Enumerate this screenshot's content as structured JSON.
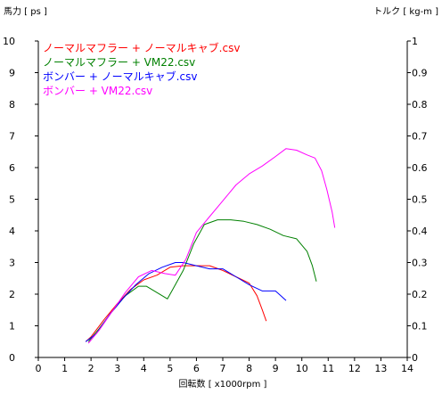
{
  "chart_data": {
    "type": "line",
    "xlabel": "回転数 [ x1000rpm ]",
    "ylabel_left": "馬力 [ ps ]",
    "ylabel_right": "トルク [ kg-m ]",
    "xlim": [
      0,
      14
    ],
    "ylim_left": [
      0,
      10
    ],
    "ylim_right": [
      0,
      1
    ],
    "x_ticks": [
      "0",
      "1",
      "2",
      "3",
      "4",
      "5",
      "6",
      "7",
      "8",
      "9",
      "10",
      "11",
      "12",
      "13",
      "14"
    ],
    "y_ticks_left": [
      "0",
      "1",
      "2",
      "3",
      "4",
      "5",
      "6",
      "7",
      "8",
      "9",
      "10"
    ],
    "y_ticks_right": [
      "0",
      "0.1",
      "0.2",
      "0.3",
      "0.4",
      "0.5",
      "0.6",
      "0.7",
      "0.8",
      "0.9",
      "1"
    ],
    "legend_placement": "top-left",
    "series": [
      {
        "name": "ノーマルマフラー + ノーマルキャブ.csv",
        "color": "#ff0000",
        "x": [
          1.8,
          2.0,
          2.5,
          3.0,
          3.5,
          4.0,
          4.5,
          5.0,
          5.5,
          6.0,
          6.5,
          7.0,
          7.5,
          8.0,
          8.3,
          8.5,
          8.65
        ],
        "y": [
          0.5,
          0.65,
          1.2,
          1.7,
          2.15,
          2.45,
          2.6,
          2.85,
          2.9,
          2.9,
          2.9,
          2.75,
          2.55,
          2.35,
          1.95,
          1.5,
          1.15
        ]
      },
      {
        "name": "ノーマルマフラー + VM22.csv",
        "color": "#008000",
        "x": [
          1.9,
          2.3,
          2.8,
          3.3,
          3.8,
          4.1,
          4.5,
          4.9,
          5.1,
          5.5,
          5.9,
          6.3,
          6.8,
          7.3,
          7.8,
          8.3,
          8.8,
          9.3,
          9.8,
          10.2,
          10.4,
          10.55
        ],
        "y": [
          0.5,
          0.9,
          1.45,
          1.95,
          2.25,
          2.25,
          2.05,
          1.85,
          2.15,
          2.75,
          3.6,
          4.2,
          4.35,
          4.35,
          4.3,
          4.2,
          4.05,
          3.85,
          3.75,
          3.35,
          2.9,
          2.4
        ]
      },
      {
        "name": "ボンバー + ノーマルキャブ.csv",
        "color": "#0000ff",
        "x": [
          1.8,
          2.2,
          2.7,
          3.2,
          3.7,
          4.2,
          4.7,
          5.2,
          5.5,
          6.0,
          6.5,
          7.0,
          7.5,
          8.0,
          8.5,
          9.0,
          9.2,
          9.4
        ],
        "y": [
          0.5,
          0.75,
          1.35,
          1.85,
          2.3,
          2.65,
          2.85,
          3.0,
          3.0,
          2.9,
          2.8,
          2.8,
          2.55,
          2.3,
          2.1,
          2.1,
          1.95,
          1.8
        ]
      },
      {
        "name": "ボンバー + VM22.csv",
        "color": "#ff00ff",
        "x": [
          1.9,
          2.3,
          2.8,
          3.3,
          3.8,
          4.3,
          4.8,
          5.2,
          5.6,
          6.0,
          6.5,
          7.0,
          7.5,
          8.0,
          8.5,
          9.0,
          9.4,
          9.8,
          10.2,
          10.5,
          10.75,
          10.95,
          11.15,
          11.25
        ],
        "y": [
          0.45,
          0.85,
          1.45,
          2.05,
          2.55,
          2.75,
          2.65,
          2.6,
          3.1,
          3.95,
          4.45,
          4.95,
          5.45,
          5.8,
          6.05,
          6.35,
          6.6,
          6.55,
          6.4,
          6.3,
          5.9,
          5.3,
          4.6,
          4.1
        ]
      }
    ]
  }
}
